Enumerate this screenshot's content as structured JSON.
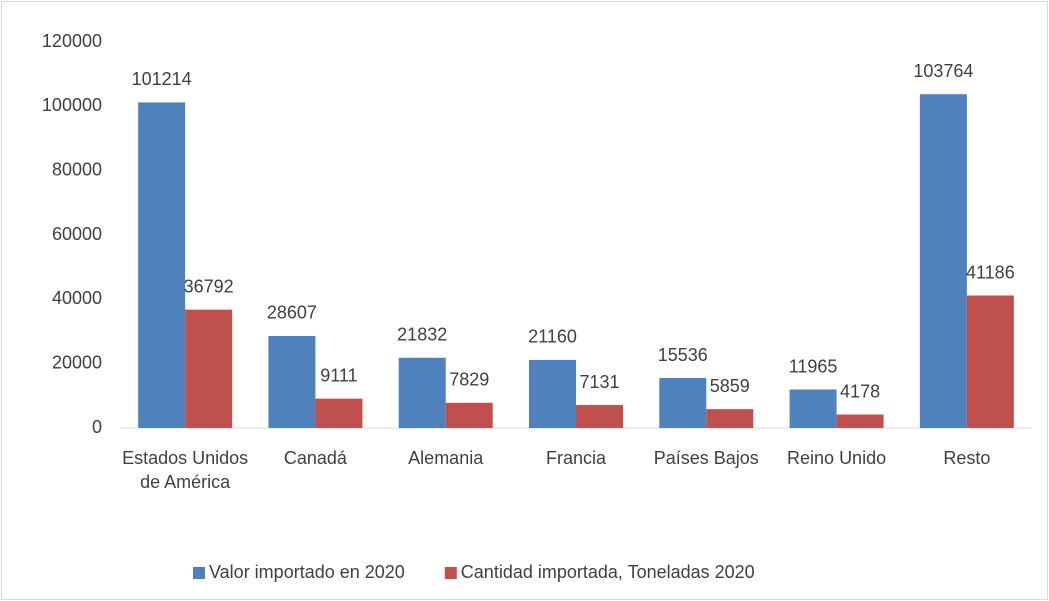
{
  "chart_data": {
    "type": "bar",
    "categories": [
      "Estados Unidos de América",
      "Canadá",
      "Alemania",
      "Francia",
      "Países Bajos",
      "Reino Unido",
      "Resto"
    ],
    "series": [
      {
        "name": "Valor importado en 2020",
        "color": "#4f81bd",
        "values": [
          101214,
          28607,
          21832,
          21160,
          15536,
          11965,
          103764
        ]
      },
      {
        "name": "Cantidad importada, Toneladas 2020",
        "color": "#c0504d",
        "values": [
          36792,
          9111,
          7829,
          7131,
          5859,
          4178,
          41186
        ]
      }
    ],
    "ylim": [
      0,
      120000
    ],
    "yticks": [
      0,
      20000,
      40000,
      60000,
      80000,
      100000,
      120000
    ],
    "grid": false,
    "legend": "bottom"
  }
}
